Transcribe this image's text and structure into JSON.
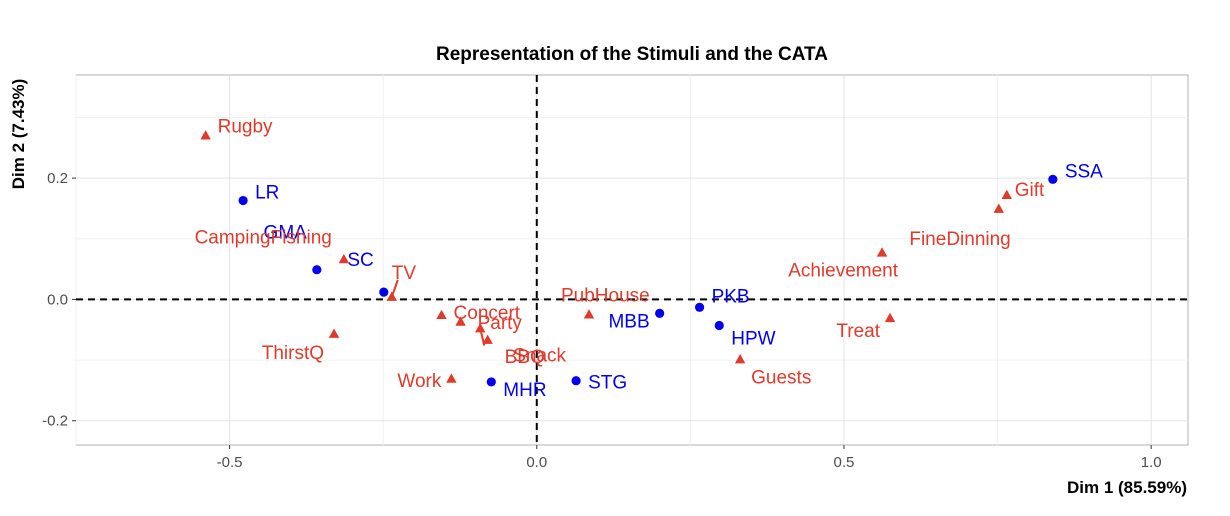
{
  "chart_data": {
    "type": "scatter",
    "title": "Representation of the Stimuli and the CATA",
    "xlabel": "Dim 1 (85.59%)",
    "ylabel": "Dim 2 (7.43%)",
    "xlim": [
      -0.75,
      1.06
    ],
    "ylim": [
      -0.24,
      0.37
    ],
    "xticks": [
      -0.5,
      0.0,
      0.5,
      1.0
    ],
    "xtick_labels": [
      "-0.5",
      "0.0",
      "0.5",
      "1.0"
    ],
    "yticks": [
      -0.2,
      0.0,
      0.2
    ],
    "ytick_labels": [
      "-0.2",
      "0.0",
      "0.2"
    ],
    "grid": true,
    "reference_lines": {
      "x": 0,
      "y": 0,
      "style": "dashed"
    },
    "colors": {
      "stimuli": "#0000ee",
      "cata": "#e03a2b"
    },
    "series": [
      {
        "marker": "circle",
        "color": "#0000ee",
        "points": [
          {
            "label": "LR",
            "x": -0.478,
            "y": 0.163
          },
          {
            "label": "GMA",
            "x": -0.358,
            "y": 0.049
          },
          {
            "label": "SC",
            "x": -0.249,
            "y": 0.012
          },
          {
            "label": "MHR",
            "x": -0.074,
            "y": -0.136
          },
          {
            "label": "STG",
            "x": 0.064,
            "y": -0.134
          },
          {
            "label": "MBB",
            "x": 0.2,
            "y": -0.023
          },
          {
            "label": "PKB",
            "x": 0.265,
            "y": -0.013
          },
          {
            "label": "HPW",
            "x": 0.297,
            "y": -0.043
          },
          {
            "label": "SSA",
            "x": 0.84,
            "y": 0.198
          }
        ]
      },
      {
        "marker": "triangle",
        "color": "#e03a2b",
        "points": [
          {
            "label": "Rugby",
            "x": -0.539,
            "y": 0.27
          },
          {
            "label": "CampingFishing",
            "x": -0.314,
            "y": 0.066
          },
          {
            "label": "ThirstQ",
            "x": -0.33,
            "y": -0.057
          },
          {
            "label": "TV",
            "x": -0.236,
            "y": 0.004
          },
          {
            "label": "Concert",
            "x": -0.155,
            "y": -0.026
          },
          {
            "label": "Party",
            "x": -0.124,
            "y": -0.037
          },
          {
            "label": "Snack",
            "x": -0.092,
            "y": -0.048
          },
          {
            "label": "BBQ",
            "x": -0.08,
            "y": -0.067
          },
          {
            "label": "Work",
            "x": -0.139,
            "y": -0.131
          },
          {
            "label": "PubHouse",
            "x": 0.085,
            "y": -0.025
          },
          {
            "label": "Guests",
            "x": 0.331,
            "y": -0.099
          },
          {
            "label": "Achievement",
            "x": 0.562,
            "y": 0.077
          },
          {
            "label": "Treat",
            "x": 0.575,
            "y": -0.031
          },
          {
            "label": "FineDinning",
            "x": 0.752,
            "y": 0.149
          },
          {
            "label": "Gift",
            "x": 0.765,
            "y": 0.172
          }
        ]
      }
    ]
  }
}
